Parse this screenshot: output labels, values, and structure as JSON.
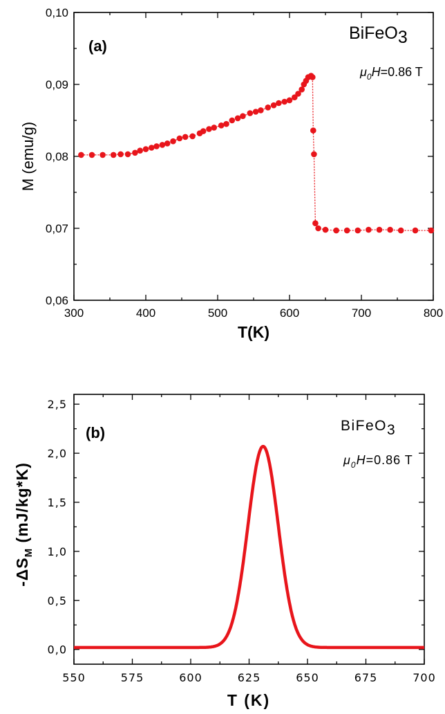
{
  "chart_data": [
    {
      "type": "line",
      "panel_label": "(a)",
      "annotation_compound": "BiFeO",
      "annotation_compound_sub": "3",
      "annotation_field_symbol": "μ",
      "annotation_field_sub": "0",
      "annotation_field_var": "H",
      "annotation_field_value": "=0.86 T",
      "xlabel": "T(K)",
      "ylabel": "M (emu/g)",
      "xlim": [
        300,
        800
      ],
      "ylim": [
        0.06,
        0.1
      ],
      "xticks": [
        "300",
        "400",
        "500",
        "600",
        "700",
        "800"
      ],
      "yticks": [
        "0,06",
        "0,07",
        "0,08",
        "0,09",
        "0,10"
      ],
      "marker": "circle",
      "color": "#e8151b",
      "series": [
        {
          "x": [
            310,
            325,
            340,
            355,
            365,
            375,
            385,
            392,
            400,
            408,
            415,
            423,
            430,
            438,
            447,
            455,
            465,
            475,
            480,
            488,
            495,
            505,
            512,
            520,
            528,
            535,
            545,
            553,
            560,
            570,
            578,
            585,
            593,
            600,
            607,
            612,
            617,
            620,
            623,
            626,
            630,
            632,
            633,
            634,
            636,
            640,
            650,
            665,
            680,
            695,
            710,
            725,
            740,
            755,
            775,
            797
          ],
          "y": [
            0.0802,
            0.0802,
            0.0802,
            0.0802,
            0.0803,
            0.0803,
            0.0805,
            0.0808,
            0.081,
            0.0812,
            0.0814,
            0.0816,
            0.0818,
            0.0821,
            0.0825,
            0.0827,
            0.0828,
            0.0832,
            0.0835,
            0.0838,
            0.084,
            0.0843,
            0.0845,
            0.085,
            0.0853,
            0.0856,
            0.086,
            0.0862,
            0.0864,
            0.0868,
            0.0871,
            0.0874,
            0.0876,
            0.0878,
            0.0882,
            0.0887,
            0.0893,
            0.09,
            0.0905,
            0.091,
            0.0912,
            0.091,
            0.0836,
            0.0803,
            0.0707,
            0.07,
            0.0698,
            0.0697,
            0.0697,
            0.0697,
            0.0698,
            0.0698,
            0.0698,
            0.0697,
            0.0697,
            0.0697
          ]
        }
      ]
    },
    {
      "type": "line",
      "panel_label": "(b)",
      "annotation_compound": "BiFeO",
      "annotation_compound_sub": "3",
      "annotation_field_symbol": "μ",
      "annotation_field_sub": "0",
      "annotation_field_var": "H",
      "annotation_field_value": "=0.86 T",
      "xlabel": "T (K)",
      "ylabel_prefix": "-ΔS",
      "ylabel_sub": "M",
      "ylabel_suffix": " (mJ/kg*K)",
      "xlim": [
        550,
        700
      ],
      "ylim": [
        -0.15,
        2.6
      ],
      "xticks": [
        "550",
        "575",
        "600",
        "625",
        "650",
        "675",
        "700"
      ],
      "yticks": [
        "0,0",
        "0,5",
        "1,0",
        "1,5",
        "2,0",
        "2,5"
      ],
      "color": "#e8151b",
      "peak": {
        "x": 631,
        "y": 2.05,
        "halfwidth": 6.5
      }
    }
  ]
}
